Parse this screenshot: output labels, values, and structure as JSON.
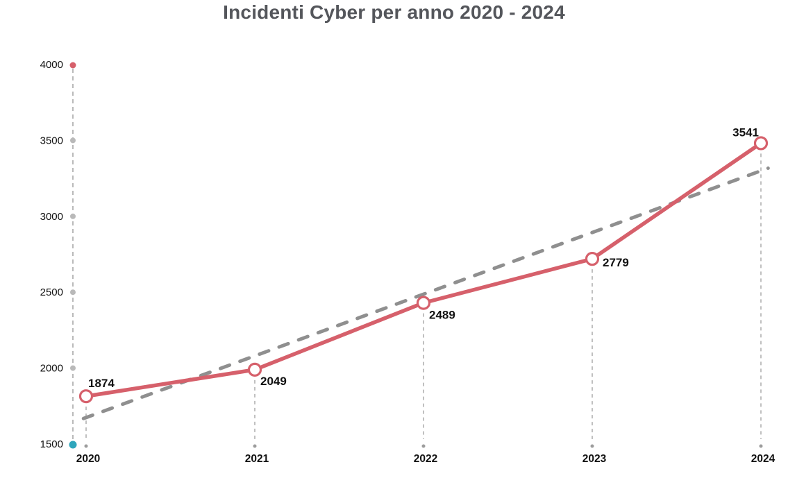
{
  "title": "Incidenti Cyber per anno 2020 - 2024",
  "chart_data": {
    "type": "line",
    "title": "Incidenti Cyber per anno 2020 - 2024",
    "categories": [
      "2020",
      "2021",
      "2022",
      "2023",
      "2024"
    ],
    "series": [
      {
        "name": "Incidenti cyber",
        "values": [
          1874,
          2049,
          2489,
          2779,
          3541
        ],
        "color": "#d6606b",
        "marker": "open-circle",
        "point_labels": [
          "1874",
          "2049",
          "2489",
          "2779",
          "3541"
        ]
      }
    ],
    "trendline": {
      "type": "linear",
      "style": "dashed",
      "color": "#8f8f8f"
    },
    "x_axis": {
      "ticks": [
        "2020",
        "2021",
        "2022",
        "2023",
        "2024"
      ]
    },
    "y_axis": {
      "min": 1500,
      "max": 4000,
      "step": 500,
      "ticks": [
        "1500",
        "2000",
        "2500",
        "3000",
        "3500",
        "4000"
      ]
    },
    "gridlines": "dashed vertical drop-line per year; dashed y-guide line with dot at each tick",
    "legend": "none",
    "colors": {
      "series": "#d6606b",
      "trend": "#8f8f8f",
      "axis_dash": "#b3b3b3",
      "tick_dot": "#b9b9b9",
      "axis_top_dot": "#d6606b",
      "axis_bottom_dot": "#2fa6bc",
      "gridline_dot": "#9c9c9c",
      "text": "#111111",
      "title_text": "#54565b"
    }
  }
}
